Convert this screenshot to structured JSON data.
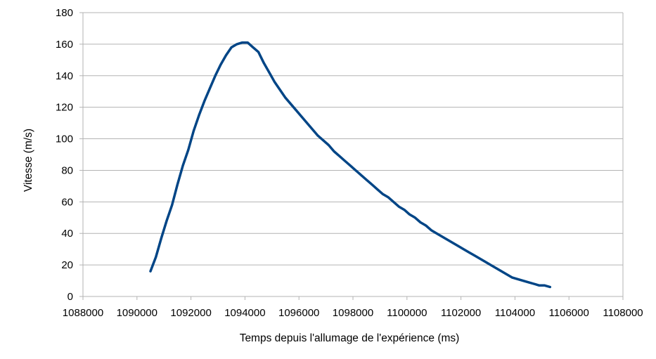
{
  "chart_data": {
    "type": "line",
    "title": "",
    "xlabel": "Temps depuis l'allumage de l'expérience (ms)",
    "ylabel": "Vitesse (m/s)",
    "xlim": [
      1088000,
      1108000
    ],
    "ylim": [
      0,
      180
    ],
    "x_ticks": [
      "1088000",
      "1090000",
      "1092000",
      "1094000",
      "1096000",
      "1098000",
      "1100000",
      "1102000",
      "1104000",
      "1106000",
      "1108000"
    ],
    "y_ticks": [
      "0",
      "20",
      "40",
      "60",
      "80",
      "100",
      "120",
      "140",
      "160",
      "180"
    ],
    "grid": true,
    "legend": "none",
    "series": [
      {
        "color": "#004586",
        "x": [
          1090500,
          1090700,
          1090900,
          1091100,
          1091300,
          1091500,
          1091700,
          1091900,
          1092100,
          1092300,
          1092500,
          1092700,
          1092900,
          1093100,
          1093300,
          1093500,
          1093700,
          1093900,
          1094100,
          1094300,
          1094500,
          1094700,
          1094900,
          1095100,
          1095300,
          1095500,
          1095700,
          1095900,
          1096100,
          1096300,
          1096500,
          1096700,
          1096900,
          1097100,
          1097300,
          1097500,
          1097700,
          1097900,
          1098100,
          1098300,
          1098500,
          1098700,
          1098900,
          1099100,
          1099300,
          1099500,
          1099700,
          1099900,
          1100100,
          1100300,
          1100500,
          1100700,
          1100900,
          1101100,
          1101300,
          1101500,
          1101700,
          1101900,
          1102100,
          1102300,
          1102500,
          1102700,
          1102900,
          1103100,
          1103300,
          1103500,
          1103700,
          1103900,
          1104100,
          1104300,
          1104500,
          1104700,
          1104900,
          1105100,
          1105300
        ],
        "values": [
          16,
          25,
          37,
          48,
          58,
          71,
          83,
          93,
          105,
          115,
          124,
          132,
          140,
          147,
          153,
          158,
          160,
          161,
          161,
          158,
          155,
          148,
          142,
          136,
          131,
          126,
          122,
          118,
          114,
          110,
          106,
          102,
          99,
          96,
          92,
          89,
          86,
          83,
          80,
          77,
          74,
          71,
          68,
          65,
          63,
          60,
          57,
          55,
          52,
          50,
          47,
          45,
          42,
          40,
          38,
          36,
          34,
          32,
          30,
          28,
          26,
          24,
          22,
          20,
          18,
          16,
          14,
          12,
          11,
          10,
          9,
          8,
          7,
          7,
          6
        ]
      }
    ]
  }
}
